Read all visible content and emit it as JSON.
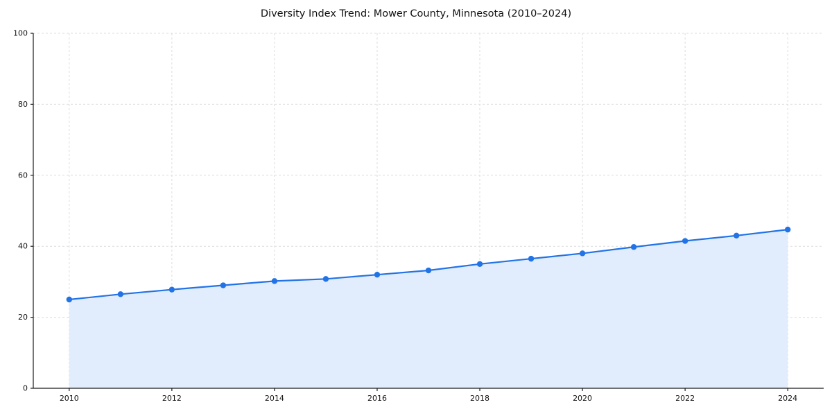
{
  "title": "Diversity Index Trend: Mower County, Minnesota (2010–2024)",
  "chart_data": {
    "type": "line",
    "title": "Diversity Index Trend: Mower County, Minnesota (2010–2024)",
    "xlabel": "",
    "ylabel": "",
    "x": [
      2010,
      2011,
      2012,
      2013,
      2014,
      2015,
      2016,
      2017,
      2018,
      2019,
      2020,
      2021,
      2022,
      2023,
      2024
    ],
    "series": [
      {
        "name": "Diversity Index",
        "values": [
          25.0,
          26.5,
          27.8,
          29.0,
          30.2,
          30.8,
          32.0,
          33.2,
          35.0,
          36.5,
          38.0,
          39.8,
          41.5,
          43.0,
          44.7
        ]
      }
    ],
    "xlim": [
      2009.3,
      2024.7
    ],
    "ylim": [
      0,
      100
    ],
    "x_ticks": [
      2010,
      2012,
      2014,
      2016,
      2018,
      2020,
      2022,
      2024
    ],
    "y_ticks": [
      0,
      20,
      40,
      60,
      80,
      100
    ],
    "grid": "dashed-both",
    "legend": "none",
    "colors": {
      "line": "#2273e6",
      "marker": "#2273e6",
      "area_fill": "#e1ecfc",
      "gridline": "#dcdcdc",
      "spine": "#1a1a1a",
      "tick_label": "#111111"
    }
  }
}
